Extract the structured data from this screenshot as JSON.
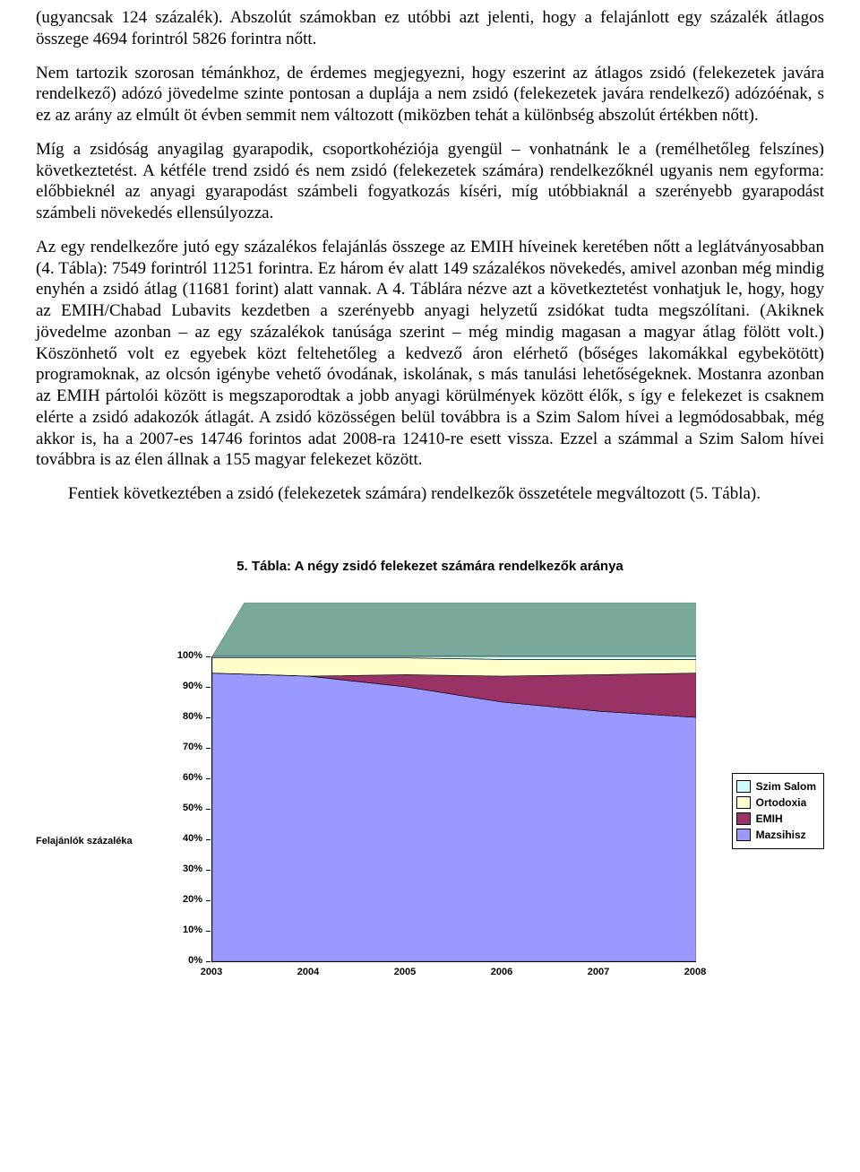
{
  "paragraphs": {
    "p1": "(ugyancsak 124 százalék). Abszolút számokban ez utóbbi azt jelenti, hogy a felajánlott egy százalék átlagos összege 4694 forintról 5826 forintra nőtt.",
    "p2": "Nem tartozik szorosan témánkhoz, de érdemes megjegyezni, hogy eszerint az átlagos zsidó (felekezetek javára rendelkező) adózó jövedelme szinte pontosan a duplája a nem zsidó (felekezetek javára rendelkező) adózóénak, s ez az arány az elmúlt öt évben semmit nem változott (miközben tehát a különbség abszolút értékben nőtt).",
    "p3": "Míg a zsidóság anyagilag gyarapodik, csoportkohéziója gyengül – vonhatnánk le a (remélhetőleg felszínes) következtetést. A kétféle trend zsidó és nem zsidó (felekezetek számára) rendelkezőknél ugyanis nem egyforma: előbbieknél az anyagi gyarapodást számbeli fogyatkozás kíséri, míg utóbbiaknál a szerényebb gyarapodást számbeli növekedés ellensúlyozza.",
    "p4": "Az egy rendelkezőre jutó egy százalékos felajánlás összege az EMIH híveinek keretében nőtt a leglátványosabban (4. Tábla): 7549 forintról 11251 forintra. Ez három év alatt 149 százalékos növekedés, amivel azonban még mindig enyhén a zsidó átlag (11681 forint) alatt vannak. A 4. Táblára nézve azt a következtetést vonhatjuk le, hogy, hogy az EMIH/Chabad Lubavits kezdetben a szerényebb anyagi helyzetű zsidókat tudta megszólítani. (Akiknek jövedelme azonban – az egy százalékok tanúsága szerint – még mindig magasan a magyar átlag fölött volt.) Köszönhető volt ez egyebek közt feltehetőleg a kedvező áron elérhető (bőséges lakomákkal egybekötött) programoknak, az olcsón igénybe vehető óvodának, iskolának, s más tanulási lehetőségeknek. Mostanra azonban az EMIH pártolói között is megszaporodtak a jobb anyagi körülmények között élők, s így e felekezet is csaknem elérte a zsidó adakozók átlagát. A zsidó közösségen belül továbbra is a Szim Salom hívei a legmódosabbak, még akkor is, ha a 2007-es 14746 forintos adat 2008-ra 12410-re esett vissza. Ezzel a számmal a Szim Salom hívei továbbra is az élen állnak a 155 magyar felekezet között.",
    "p5": "Fentiek következtében a zsidó (felekezetek számára) rendelkezők összetétele megváltozott (5. Tábla)."
  },
  "chart": {
    "title": "5. Tábla: A négy zsidó felekezet számára rendelkezők aránya",
    "type": "stacked-area-3d",
    "y_axis_label": "Felajánlók százaléka",
    "ylim": [
      0,
      100
    ],
    "ytick_step": 10,
    "y_ticks": [
      "0%",
      "10%",
      "20%",
      "30%",
      "40%",
      "50%",
      "60%",
      "70%",
      "80%",
      "90%",
      "100%"
    ],
    "categories": [
      "2003",
      "2004",
      "2005",
      "2006",
      "2007",
      "2008"
    ],
    "series": [
      {
        "name": "Mazsihisz",
        "color": "#9999ff",
        "values": [
          94.5,
          93.5,
          90.0,
          85.0,
          82.0,
          80.0
        ]
      },
      {
        "name": "EMIH",
        "color": "#993366",
        "values": [
          0.0,
          0.0,
          4.0,
          8.5,
          12.0,
          14.5
        ]
      },
      {
        "name": "Ortodoxia",
        "color": "#ffffcc",
        "values": [
          5.0,
          6.0,
          5.5,
          5.5,
          5.0,
          4.5
        ]
      },
      {
        "name": "Szim Salom",
        "color": "#ccffff",
        "values": [
          0.5,
          0.5,
          0.5,
          1.0,
          1.0,
          1.0
        ]
      }
    ],
    "legend_order": [
      "Szim Salom",
      "Ortodoxia",
      "EMIH",
      "Mazsihisz"
    ],
    "background_color": "#ffffff",
    "axis_color": "#000000",
    "depth_top_color": "#79a99b",
    "top_fontsize": 15,
    "axis_fontsize": 11,
    "legend_fontsize": 12
  }
}
